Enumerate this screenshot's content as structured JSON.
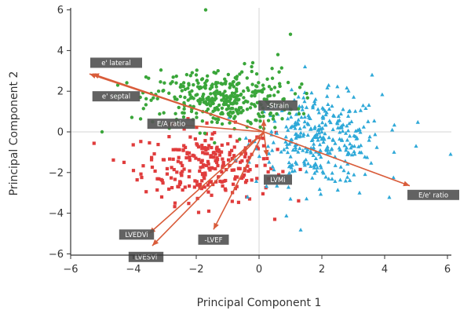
{
  "chart_data": {
    "type": "scatter",
    "xlabel": "Principal Component 1",
    "ylabel": "Principal Component 2",
    "xlim": [
      -6,
      6.3
    ],
    "ylim": [
      -6.5,
      6.2
    ],
    "x_ticks": [
      -6,
      -4,
      -2,
      0,
      2,
      4,
      6
    ],
    "y_ticks": [
      -6,
      -4,
      -2,
      0,
      2,
      4,
      6
    ],
    "x_tick_labels": [
      "−6",
      "−4",
      "−2",
      "0",
      "2",
      "4",
      "6"
    ],
    "y_tick_labels": [
      "−6",
      "−4",
      "−2",
      "0",
      "2",
      "4",
      "6"
    ],
    "reference_lines": {
      "x": 0,
      "y": 0
    },
    "grid": false,
    "series": [
      {
        "marker": "circle",
        "color": "#3aa63a",
        "center": [
          -1.2,
          1.6
        ],
        "spread": [
          1.15,
          0.75
        ],
        "count": 360,
        "points": [
          [
            -5.0,
            0.0
          ],
          [
            -1.7,
            6.0
          ],
          [
            1.0,
            4.8
          ],
          [
            -4.5,
            2.3
          ],
          [
            -3.2,
            2.0
          ],
          [
            -0.2,
            3.4
          ],
          [
            0.6,
            3.8
          ],
          [
            -2.0,
            2.8
          ]
        ]
      },
      {
        "marker": "triangle",
        "color": "#2fa9d8",
        "center": [
          1.9,
          -0.4
        ],
        "spread": [
          1.0,
          1.1
        ],
        "count": 330,
        "points": [
          [
            6.1,
            -1.1
          ],
          [
            5.0,
            -0.7
          ],
          [
            4.3,
            -1.0
          ],
          [
            3.6,
            2.8
          ],
          [
            3.2,
            -3.0
          ],
          [
            2.7,
            -1.9
          ],
          [
            1.0,
            -3.3
          ],
          [
            1.8,
            1.6
          ]
        ]
      },
      {
        "marker": "square",
        "color": "#e03c3c",
        "center": [
          -1.6,
          -1.6
        ],
        "spread": [
          1.05,
          0.9
        ],
        "count": 250,
        "points": [
          [
            -4.0,
            -1.9
          ],
          [
            -4.3,
            -1.5
          ],
          [
            -3.1,
            -3.2
          ],
          [
            -1.6,
            -3.9
          ],
          [
            -0.3,
            -3.3
          ],
          [
            0.5,
            -4.3
          ],
          [
            -2.5,
            -2.5
          ],
          [
            0.3,
            -2.3
          ]
        ]
      }
    ],
    "loadings": {
      "origin": [
        0.15,
        0.0
      ],
      "color": "#d95c3a",
      "vectors": [
        {
          "label": "e' lateral",
          "end": [
            -5.3,
            2.85
          ],
          "label_at": [
            -4.55,
            3.4
          ]
        },
        {
          "label": "e' septal",
          "end": [
            -5.4,
            2.85
          ],
          "label_at": [
            -4.55,
            1.75
          ]
        },
        {
          "label": "E/A ratio",
          "end": [
            -2.9,
            0.4
          ],
          "label_at": [
            -2.8,
            0.4
          ]
        },
        {
          "label": "-Strain",
          "end": [
            0.15,
            0.6
          ],
          "label_at": [
            0.6,
            1.3
          ]
        },
        {
          "label": "LVMi",
          "end": [
            0.25,
            -1.2
          ],
          "label_at": [
            0.6,
            -2.35
          ]
        },
        {
          "label": "E/e' ratio",
          "end": [
            4.8,
            -2.65
          ],
          "label_at": [
            5.55,
            -3.1
          ]
        },
        {
          "label": "LVEDVi",
          "end": [
            -3.5,
            -5.0
          ],
          "label_at": [
            -3.9,
            -5.05
          ]
        },
        {
          "label": "LVESVi",
          "end": [
            -3.4,
            -5.6
          ],
          "label_at": [
            -3.6,
            -6.15
          ]
        },
        {
          "label": "-LVEF",
          "end": [
            -1.45,
            -4.8
          ],
          "label_at": [
            -1.45,
            -5.3
          ]
        }
      ]
    }
  }
}
